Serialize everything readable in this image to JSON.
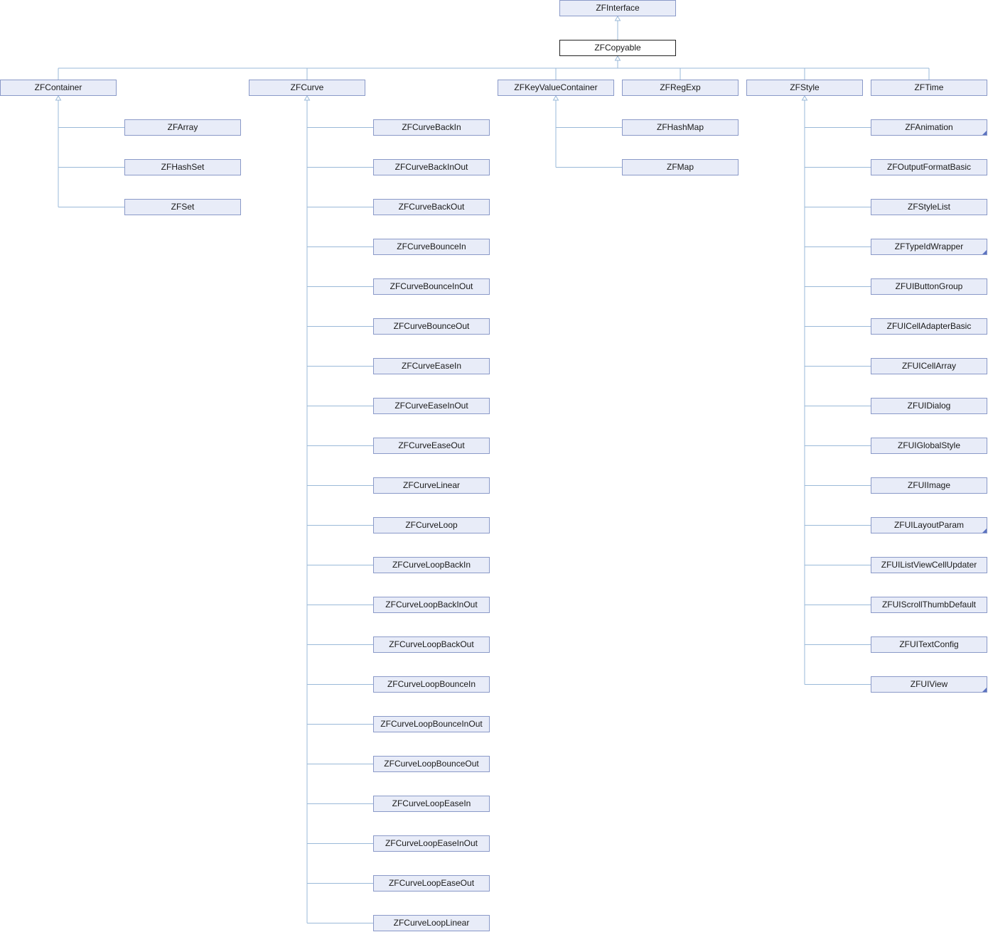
{
  "root": {
    "id": "zfinterface",
    "label": "ZFInterface"
  },
  "current": {
    "id": "zfcopyable",
    "label": "ZFCopyable"
  },
  "children": [
    {
      "id": "zfcontainer",
      "label": "ZFContainer",
      "children": [
        {
          "id": "zfarray",
          "label": "ZFArray"
        },
        {
          "id": "zfhashset",
          "label": "ZFHashSet"
        },
        {
          "id": "zfset",
          "label": "ZFSet"
        }
      ]
    },
    {
      "id": "zfcurve",
      "label": "ZFCurve",
      "children": [
        {
          "id": "zfcurvebackin",
          "label": "ZFCurveBackIn"
        },
        {
          "id": "zfcurvebackinout",
          "label": "ZFCurveBackInOut"
        },
        {
          "id": "zfcurvebackout",
          "label": "ZFCurveBackOut"
        },
        {
          "id": "zfcurvebouncein",
          "label": "ZFCurveBounceIn"
        },
        {
          "id": "zfcurvebounceinout",
          "label": "ZFCurveBounceInOut"
        },
        {
          "id": "zfcurvebounceout",
          "label": "ZFCurveBounceOut"
        },
        {
          "id": "zfcurveeasein",
          "label": "ZFCurveEaseIn"
        },
        {
          "id": "zfcurveeaseinout",
          "label": "ZFCurveEaseInOut"
        },
        {
          "id": "zfcurveeaseout",
          "label": "ZFCurveEaseOut"
        },
        {
          "id": "zfcurvelinear",
          "label": "ZFCurveLinear"
        },
        {
          "id": "zfcurveloop",
          "label": "ZFCurveLoop"
        },
        {
          "id": "zfcurveloopbackin",
          "label": "ZFCurveLoopBackIn"
        },
        {
          "id": "zfcurveloopbackinout",
          "label": "ZFCurveLoopBackInOut"
        },
        {
          "id": "zfcurveloopbackout",
          "label": "ZFCurveLoopBackOut"
        },
        {
          "id": "zfcurveloopbouncein",
          "label": "ZFCurveLoopBounceIn"
        },
        {
          "id": "zfcurveloopbounceinout",
          "label": "ZFCurveLoopBounceInOut"
        },
        {
          "id": "zfcurveloopbounceout",
          "label": "ZFCurveLoopBounceOut"
        },
        {
          "id": "zfcurveloopeasein",
          "label": "ZFCurveLoopEaseIn"
        },
        {
          "id": "zfcurveloopeaseinout",
          "label": "ZFCurveLoopEaseInOut"
        },
        {
          "id": "zfcurveloopeaseout",
          "label": "ZFCurveLoopEaseOut"
        },
        {
          "id": "zfcurvelooplinear",
          "label": "ZFCurveLoopLinear"
        }
      ]
    },
    {
      "id": "zfkeyvaluecontainer",
      "label": "ZFKeyValueContainer",
      "children": [
        {
          "id": "zfhashmap",
          "label": "ZFHashMap"
        },
        {
          "id": "zfmap",
          "label": "ZFMap"
        }
      ]
    },
    {
      "id": "zfregexp",
      "label": "ZFRegExp",
      "children": []
    },
    {
      "id": "zfstyle",
      "label": "ZFStyle",
      "children": [
        {
          "id": "zfanimation",
          "label": "ZFAnimation",
          "more": true
        },
        {
          "id": "zfoutputformatbasic",
          "label": "ZFOutputFormatBasic"
        },
        {
          "id": "zfstylelist",
          "label": "ZFStyleList"
        },
        {
          "id": "zftypeidwrapper",
          "label": "ZFTypeIdWrapper",
          "more": true
        },
        {
          "id": "zfuibuttongroup",
          "label": "ZFUIButtonGroup"
        },
        {
          "id": "zfuicelladapterbasic",
          "label": "ZFUICellAdapterBasic"
        },
        {
          "id": "zfuicellarray",
          "label": "ZFUICellArray"
        },
        {
          "id": "zfuidialog",
          "label": "ZFUIDialog"
        },
        {
          "id": "zfuiglobalstyle",
          "label": "ZFUIGlobalStyle"
        },
        {
          "id": "zfuiimage",
          "label": "ZFUIImage"
        },
        {
          "id": "zfuilayoutparam",
          "label": "ZFUILayoutParam",
          "more": true
        },
        {
          "id": "zfuilistviewcellupdater",
          "label": "ZFUIListViewCellUpdater"
        },
        {
          "id": "zfuiscrollthumbdefault",
          "label": "ZFUIScrollThumbDefault"
        },
        {
          "id": "zfuitextconfig",
          "label": "ZFUITextConfig"
        },
        {
          "id": "zfuiview",
          "label": "ZFUIView",
          "more": true
        }
      ]
    },
    {
      "id": "zftime",
      "label": "ZFTime",
      "children": []
    }
  ],
  "colors": {
    "edge": "#9ab9d8",
    "node_fill": "#e8ecf8",
    "node_border": "#8a99c8",
    "more_marker": "#5b72c0"
  }
}
